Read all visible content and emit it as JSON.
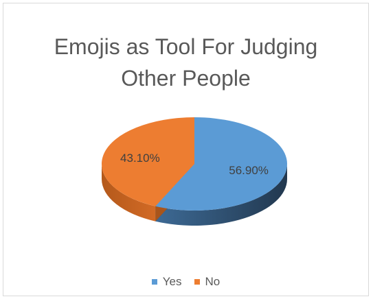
{
  "chart_data": {
    "type": "pie",
    "title_lines": [
      "Emojis as Tool For Judging",
      "Other People"
    ],
    "slices": [
      {
        "name": "Yes",
        "value": 56.9,
        "label": "56.90%",
        "color": "#5b9bd5",
        "side_color": "#2e4f6e"
      },
      {
        "name": "No",
        "value": 43.1,
        "label": "43.10%",
        "color": "#ed7d31",
        "side_color": "#a9551b"
      }
    ],
    "legend_position": "bottom",
    "style": "3d"
  }
}
